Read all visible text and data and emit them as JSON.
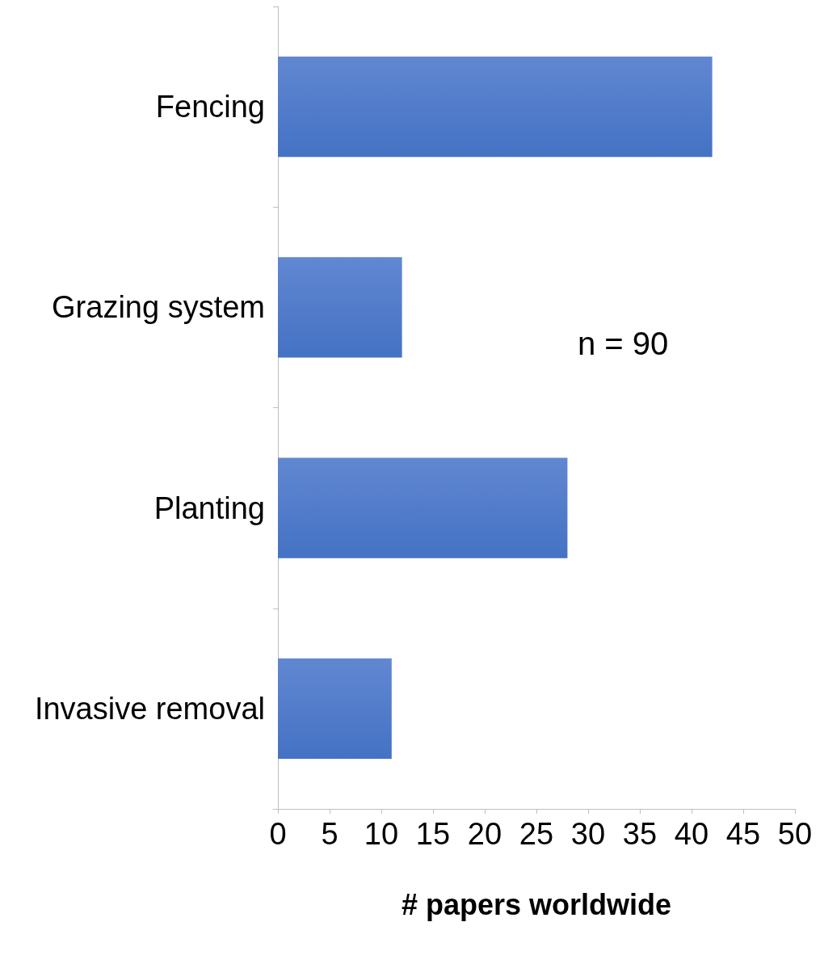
{
  "chart_data": {
    "type": "bar",
    "orientation": "horizontal",
    "categories": [
      "Fencing",
      "Grazing system",
      "Planting",
      "Invasive removal"
    ],
    "values": [
      42,
      12,
      28,
      11
    ],
    "color": "#4472c4",
    "xlim": [
      0,
      50
    ],
    "xticks": [
      0,
      5,
      10,
      15,
      20,
      25,
      30,
      35,
      40,
      45,
      50
    ],
    "xlabel": "# papers worldwide",
    "annotations": [
      "n = 90"
    ],
    "grid": false
  }
}
